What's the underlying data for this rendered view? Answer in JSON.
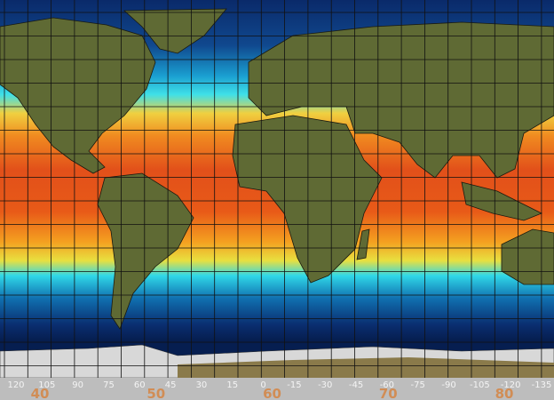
{
  "longitude_labels": [
    "120",
    "105",
    "90",
    "75",
    "60",
    "45",
    "30",
    "15",
    "0",
    "-15",
    "-30",
    "-45",
    "-60",
    "-75",
    "-90",
    "-105",
    "-120",
    "-135"
  ],
  "overlay_labels": [
    "40",
    "50",
    "60",
    "70",
    "80"
  ]
}
